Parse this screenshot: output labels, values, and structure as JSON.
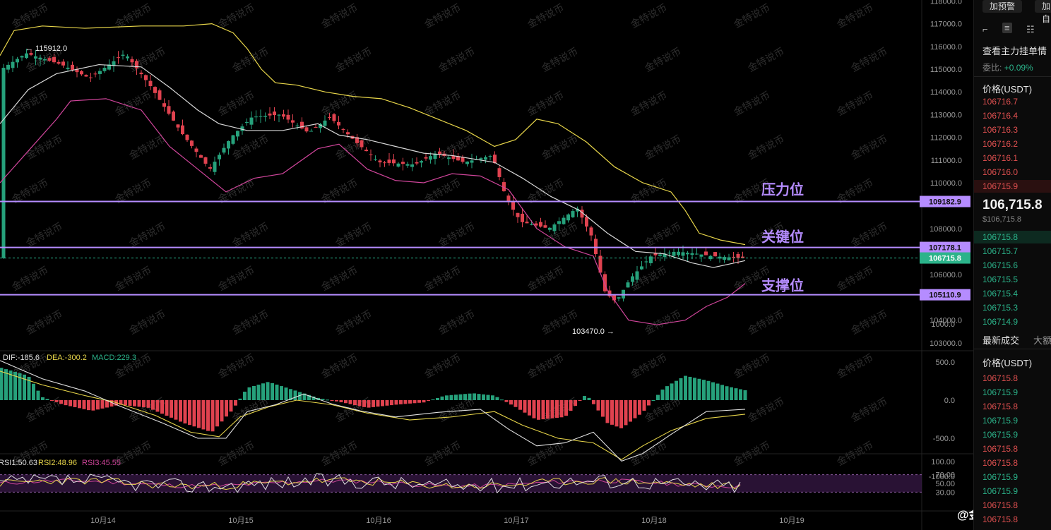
{
  "chart_data": [
    {
      "type": "candlestick",
      "title": "",
      "x_ticks": [
        "10月14",
        "10月15",
        "10月16",
        "10月17",
        "10月18",
        "10月19"
      ],
      "y_ticks": [
        "118000.0",
        "117000.0",
        "116000.0",
        "115000.0",
        "114000.0",
        "113000.0",
        "112000.0",
        "111000.0",
        "110000.0",
        "108000.0",
        "106000.0",
        "104000.0",
        "103000.0"
      ],
      "ylim": [
        102700,
        118000
      ],
      "annotations": {
        "high": "← 115912.0",
        "low": "103470.0 →",
        "resistance": "压力位",
        "key": "关键位",
        "support": "支撑位"
      },
      "levels": {
        "resistance": "109182.9",
        "key": "107178.1",
        "current": "106715.8",
        "support": "105110.9"
      },
      "overlays": [
        "Bollinger upper",
        "Bollinger middle",
        "Bollinger lower"
      ],
      "colors": {
        "up": "#26a17b",
        "down": "#e0424f",
        "level": "#b58cff",
        "upper": "#e8d64a",
        "lower": "#d0459b",
        "middle": "#d8d8d8"
      }
    },
    {
      "type": "bar",
      "indicator": "MACD",
      "legend": {
        "dif": "DIF:-185.6",
        "dea": "DEA:-300.2",
        "macd": "MACD:229.3"
      },
      "y_ticks": [
        "1000.0",
        "500.0",
        "0.0",
        "-500.0",
        "-1000.0"
      ],
      "ylim": [
        -1000,
        1000
      ]
    },
    {
      "type": "line",
      "indicator": "RSI",
      "legend": {
        "rsi1": "RSI1:50.63",
        "rsi2": "RSI2:48.96",
        "rsi3": "RSI3:45.55"
      },
      "y_ticks": [
        "100.00",
        "70.00",
        "50.00",
        "30.00"
      ],
      "ylim": [
        0,
        100
      ]
    }
  ],
  "watermark": "金特说币",
  "brand": "@金特说币",
  "sidebar": {
    "buttons": [
      "加预警",
      "加自"
    ],
    "orderbook_title": "查看主力挂单情",
    "ratio_label": "委比:",
    "ratio_value": "+0.09%",
    "price_header": "价格(USDT)",
    "asks": [
      "106716.7",
      "106716.4",
      "106716.3",
      "106716.2",
      "106716.1",
      "106716.0",
      "106715.9"
    ],
    "last_price": "106,715.8",
    "last_price_sub": "$106,715.8",
    "bids": [
      "106715.8",
      "106715.7",
      "106715.6",
      "106715.5",
      "106715.4",
      "106715.3",
      "106714.9"
    ],
    "trades_tab": "最新成交",
    "trades_tab2": "大额",
    "trades_header": "价格(USDT)",
    "trades": [
      {
        "p": "106715.8",
        "side": "sell"
      },
      {
        "p": "106715.9",
        "side": "buy"
      },
      {
        "p": "106715.8",
        "side": "sell"
      },
      {
        "p": "106715.9",
        "side": "buy"
      },
      {
        "p": "106715.9",
        "side": "buy"
      },
      {
        "p": "106715.8",
        "side": "sell"
      },
      {
        "p": "106715.8",
        "side": "sell"
      },
      {
        "p": "106715.9",
        "side": "buy"
      },
      {
        "p": "106715.9",
        "side": "buy"
      },
      {
        "p": "106715.8",
        "side": "sell"
      },
      {
        "p": "106715.8",
        "side": "sell"
      }
    ]
  }
}
